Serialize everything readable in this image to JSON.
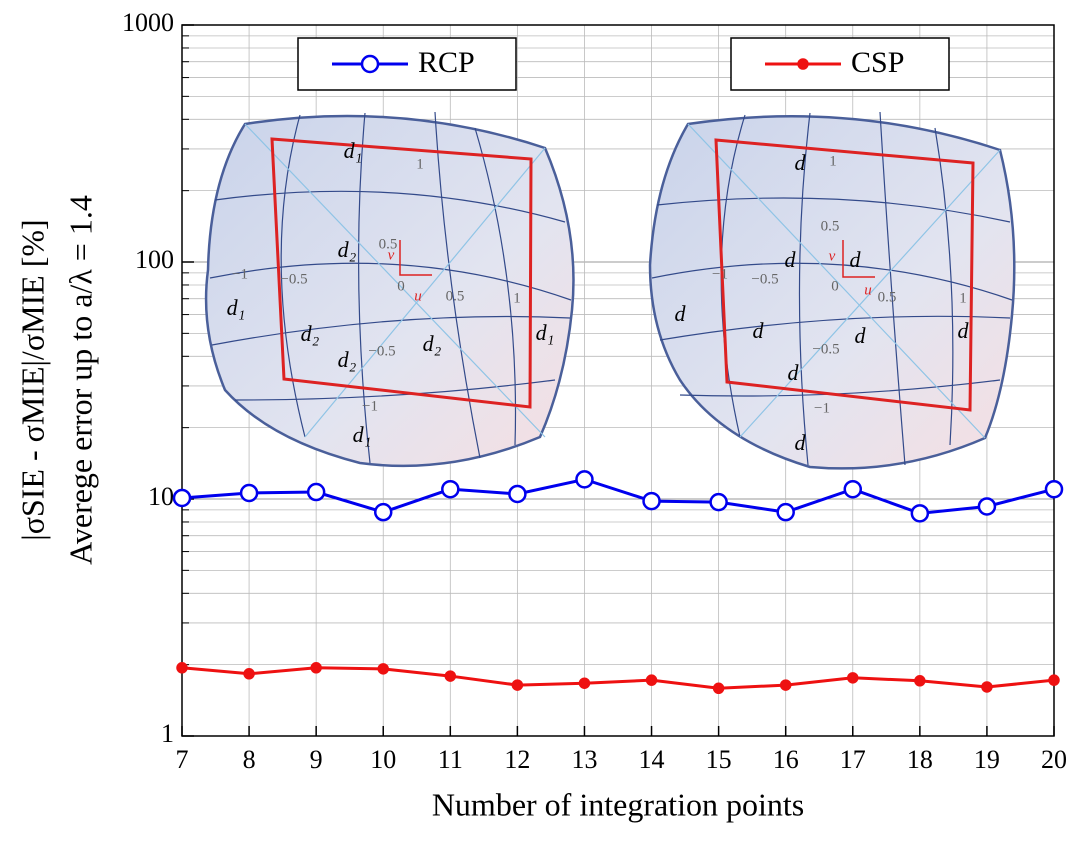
{
  "chart_data": {
    "type": "line",
    "x_label": "Number of integration points",
    "y_label": [
      "|σSIE - σMIE|/σMIE [%]",
      "Averege error up to a/λ = 1.4"
    ],
    "x": [
      7,
      8,
      9,
      10,
      11,
      12,
      13,
      14,
      15,
      16,
      17,
      18,
      19,
      20
    ],
    "series": [
      {
        "name": "RCP",
        "color": "#0000ee",
        "marker": "open-circle",
        "values": [
          10.1,
          10.6,
          10.7,
          8.8,
          11.0,
          10.5,
          12.1,
          9.8,
          9.7,
          8.8,
          11.0,
          8.7,
          9.3,
          11.0
        ]
      },
      {
        "name": "CSP",
        "color": "#ee1111",
        "marker": "dot",
        "values": [
          1.94,
          1.83,
          1.94,
          1.92,
          1.79,
          1.64,
          1.67,
          1.72,
          1.59,
          1.64,
          1.76,
          1.71,
          1.61,
          1.72
        ]
      }
    ],
    "xlim": [
      7,
      20
    ],
    "xticks": [
      7,
      8,
      9,
      10,
      11,
      12,
      13,
      14,
      15,
      16,
      17,
      18,
      19,
      20
    ],
    "ylim": [
      1,
      1000
    ],
    "yticks": [
      1,
      10,
      100,
      1000
    ],
    "y_log": true,
    "grid": true,
    "insets": [
      {
        "labels": [
          "d₁",
          "d₂",
          "d₁",
          "d₂",
          "d₂",
          "d₂",
          "d₁",
          "d₁",
          "1",
          "0.5",
          "−1",
          "−0.5",
          "0",
          "0.5",
          "1",
          "−0.5",
          "−1",
          "v",
          "u"
        ]
      },
      {
        "labels": [
          "d",
          "1",
          "0.5",
          "d",
          "d",
          "−1",
          "−0.5",
          "0",
          "0.5",
          "1",
          "d",
          "d",
          "d",
          "d",
          "−0.5",
          "d",
          "−1",
          "d",
          "v",
          "u"
        ]
      }
    ]
  }
}
